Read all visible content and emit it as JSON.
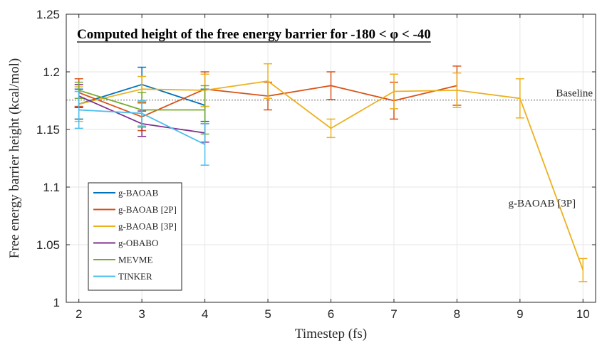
{
  "chart_data": {
    "type": "line",
    "title": "Computed height of the free energy barrier for -180 < φ < -40",
    "xlabel": "Timestep (fs)",
    "ylabel": "Free energy barrier height (kcal/mol)",
    "xlim": [
      1.8,
      10.2
    ],
    "ylim": [
      1.0,
      1.25
    ],
    "xticks": [
      2,
      3,
      4,
      5,
      6,
      7,
      8,
      9,
      10
    ],
    "yticks": [
      1,
      1.05,
      1.1,
      1.15,
      1.2,
      1.25
    ],
    "ytick_labels": [
      "1",
      "1.05",
      "1.1",
      "1.15",
      "1.2",
      "1.25"
    ],
    "grid": true,
    "legend_position": "lower-left",
    "baseline": {
      "value": 1.1755,
      "label": "Baseline",
      "color": "#666666"
    },
    "annotations": [
      {
        "text": "g-BAOAB [3P]",
        "x": 9.35,
        "y": 1.083
      }
    ],
    "series": [
      {
        "name": "g-BAOAB",
        "color": "#0072BD",
        "x": [
          2,
          3,
          4
        ],
        "y": [
          1.172,
          1.189,
          1.171
        ],
        "err": [
          0.013,
          0.015,
          0.014
        ]
      },
      {
        "name": "g-BAOAB [2P]",
        "color": "#D95319",
        "x": [
          2,
          3,
          4,
          5,
          6,
          7,
          8
        ],
        "y": [
          1.182,
          1.161,
          1.185,
          1.179,
          1.188,
          1.175,
          1.188
        ],
        "err": [
          0.012,
          0.012,
          0.015,
          0.012,
          0.012,
          0.016,
          0.017
        ]
      },
      {
        "name": "g-BAOAB [3P]",
        "color": "#EDB120",
        "x": [
          2,
          3,
          4,
          5,
          6,
          7,
          8,
          9,
          10
        ],
        "y": [
          1.172,
          1.185,
          1.184,
          1.192,
          1.151,
          1.183,
          1.184,
          1.177,
          1.028
        ],
        "err": [
          0.015,
          0.011,
          0.014,
          0.015,
          0.008,
          0.015,
          0.015,
          0.017,
          0.01
        ]
      },
      {
        "name": "g-OBABO",
        "color": "#7E2F8E",
        "x": [
          2,
          3,
          4
        ],
        "y": [
          1.179,
          1.155,
          1.147
        ],
        "err": [
          0.01,
          0.011,
          0.008
        ]
      },
      {
        "name": "MEVME",
        "color": "#77AC30",
        "x": [
          2,
          3,
          4
        ],
        "y": [
          1.184,
          1.167,
          1.167
        ],
        "err": [
          0.007,
          0.015,
          0.021
        ]
      },
      {
        "name": "TINKER",
        "color": "#4DBEEE",
        "x": [
          2,
          3,
          4
        ],
        "y": [
          1.167,
          1.164,
          1.137
        ],
        "err": [
          0.016,
          0.011,
          0.018
        ]
      }
    ]
  }
}
